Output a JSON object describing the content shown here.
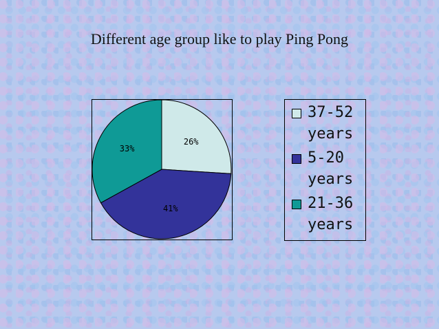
{
  "slide": {
    "title": "Different age group like to play Ping Pong"
  },
  "chart_data": {
    "type": "pie",
    "title": "Different age group like to play Ping Pong",
    "slices": [
      {
        "label": "37-52 years",
        "value": 26,
        "value_label": "26%",
        "color": "#cfe9e9"
      },
      {
        "label": "5-20 years",
        "value": 41,
        "value_label": "41%",
        "color": "#33339a"
      },
      {
        "label": "21-36 years",
        "value": 33,
        "value_label": "33%",
        "color": "#0f9a96"
      }
    ],
    "legend_position": "right"
  }
}
